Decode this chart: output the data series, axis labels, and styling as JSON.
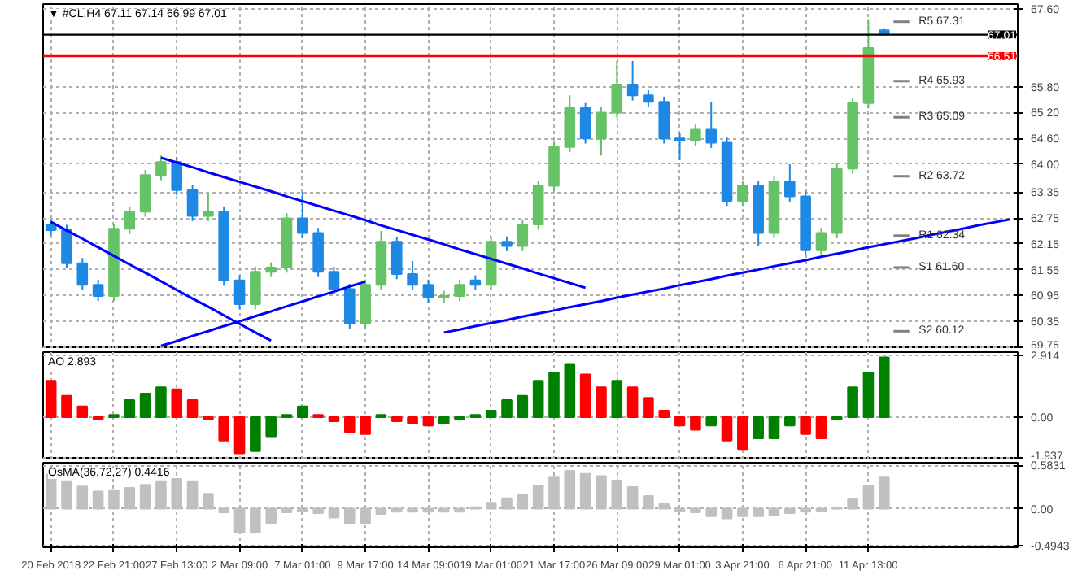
{
  "chart_data": [
    {
      "type": "candlestick",
      "title": "▼ #CL,H4  67.11 67.14 66.99 67.01",
      "categories": [
        null,
        null,
        null,
        null,
        null,
        null,
        null,
        null,
        null,
        null,
        null,
        null,
        null,
        null,
        null,
        null,
        null,
        null,
        null,
        null,
        null,
        null,
        null,
        null,
        null,
        null,
        null,
        null,
        null,
        null,
        null,
        null,
        null,
        null,
        null,
        null,
        null,
        null,
        null,
        null,
        null,
        null,
        null,
        null,
        null,
        null,
        null,
        null,
        null,
        null,
        null,
        null,
        null,
        null,
        null,
        null,
        null,
        null,
        null,
        null,
        null,
        null
      ],
      "ohlc": [
        [
          62.6,
          62.72,
          62.35,
          62.47
        ],
        [
          62.47,
          62.59,
          61.58,
          61.7
        ],
        [
          61.7,
          61.82,
          61.08,
          61.2
        ],
        [
          61.2,
          61.32,
          60.82,
          60.94
        ],
        [
          60.94,
          62.62,
          60.82,
          62.5
        ],
        [
          62.5,
          63.02,
          62.38,
          62.9
        ],
        [
          62.9,
          63.87,
          62.78,
          63.75
        ],
        [
          63.75,
          64.2,
          63.63,
          64.05
        ],
        [
          64.05,
          64.17,
          63.28,
          63.4
        ],
        [
          63.4,
          63.52,
          62.68,
          62.8
        ],
        [
          62.8,
          63.3,
          62.68,
          62.9
        ],
        [
          62.9,
          63.02,
          61.18,
          61.3
        ],
        [
          61.3,
          61.42,
          60.63,
          60.75
        ],
        [
          60.75,
          61.62,
          60.63,
          61.5
        ],
        [
          61.5,
          61.72,
          61.38,
          61.6
        ],
        [
          61.6,
          62.86,
          61.48,
          62.74
        ],
        [
          62.74,
          63.35,
          62.28,
          62.4
        ],
        [
          62.4,
          62.52,
          61.38,
          61.5
        ],
        [
          61.5,
          61.62,
          60.98,
          61.1
        ],
        [
          61.1,
          61.22,
          60.18,
          60.3
        ],
        [
          60.3,
          61.32,
          60.18,
          61.2
        ],
        [
          61.2,
          62.45,
          61.08,
          62.2
        ],
        [
          62.2,
          62.32,
          61.33,
          61.45
        ],
        [
          61.45,
          61.75,
          61.08,
          61.2
        ],
        [
          61.2,
          61.32,
          60.78,
          60.9
        ],
        [
          60.9,
          61.06,
          60.78,
          60.94
        ],
        [
          60.94,
          61.32,
          60.82,
          61.2
        ],
        [
          61.3,
          61.42,
          61.08,
          61.2
        ],
        [
          61.2,
          62.32,
          61.08,
          62.2
        ],
        [
          62.2,
          62.32,
          61.98,
          62.1
        ],
        [
          62.1,
          62.72,
          61.98,
          62.6
        ],
        [
          62.6,
          63.62,
          62.48,
          63.5
        ],
        [
          63.5,
          64.52,
          63.38,
          64.4
        ],
        [
          64.4,
          65.6,
          64.28,
          65.3
        ],
        [
          65.3,
          65.42,
          64.48,
          64.6
        ],
        [
          64.6,
          65.32,
          64.2,
          65.2
        ],
        [
          65.2,
          66.4,
          65.08,
          65.85
        ],
        [
          65.85,
          66.4,
          65.48,
          65.6
        ],
        [
          65.6,
          65.72,
          65.33,
          65.45
        ],
        [
          65.45,
          65.57,
          64.48,
          64.6
        ],
        [
          64.6,
          64.72,
          64.1,
          64.55
        ],
        [
          64.55,
          64.92,
          64.43,
          64.8
        ],
        [
          64.8,
          65.45,
          64.38,
          64.5
        ],
        [
          64.5,
          64.62,
          63.03,
          63.15
        ],
        [
          63.15,
          63.62,
          63.03,
          63.5
        ],
        [
          63.5,
          63.62,
          62.1,
          62.4
        ],
        [
          62.4,
          63.72,
          62.28,
          63.6
        ],
        [
          63.6,
          64.0,
          63.13,
          63.25
        ],
        [
          63.25,
          63.37,
          61.88,
          62.0
        ],
        [
          62.0,
          62.52,
          61.88,
          62.4
        ],
        [
          62.4,
          64.02,
          62.28,
          63.9
        ],
        [
          63.9,
          65.54,
          63.78,
          65.42
        ],
        [
          65.42,
          67.37,
          65.3,
          66.7
        ],
        [
          67.11,
          67.14,
          66.99,
          67.01
        ],
        null,
        null,
        null,
        null,
        null,
        null,
        null,
        null
      ],
      "colors": [
        "#1e88e5",
        "#1e88e5",
        "#1e88e5",
        "#1e88e5",
        "#66c266",
        "#66c266",
        "#66c266",
        "#66c266",
        "#1e88e5",
        "#1e88e5",
        "#66c266",
        "#1e88e5",
        "#1e88e5",
        "#66c266",
        "#66c266",
        "#66c266",
        "#1e88e5",
        "#1e88e5",
        "#1e88e5",
        "#1e88e5",
        "#66c266",
        "#66c266",
        "#1e88e5",
        "#1e88e5",
        "#1e88e5",
        "#66c266",
        "#66c266",
        "#1e88e5",
        "#66c266",
        "#1e88e5",
        "#66c266",
        "#66c266",
        "#66c266",
        "#66c266",
        "#1e88e5",
        "#66c266",
        "#66c266",
        "#1e88e5",
        "#1e88e5",
        "#1e88e5",
        "#1e88e5",
        "#66c266",
        "#1e88e5",
        "#1e88e5",
        "#66c266",
        "#1e88e5",
        "#66c266",
        "#1e88e5",
        "#1e88e5",
        "#66c266",
        "#66c266",
        "#66c266",
        "#66c266",
        "#1e88e5",
        null,
        null,
        null,
        null,
        null,
        null,
        null,
        null
      ],
      "series": [
        {
          "type": "line",
          "color": "#0000ff",
          "values": [
            62.66,
            62.46,
            62.27,
            62.07,
            61.87,
            61.67,
            61.48,
            61.28,
            61.08,
            60.88,
            60.69,
            60.49,
            60.29,
            60.09,
            59.9,
            null,
            null,
            null,
            null,
            null,
            null,
            null,
            null,
            null,
            null,
            null,
            null,
            null,
            null,
            null,
            null,
            null,
            null,
            null,
            null,
            null,
            null,
            null,
            null,
            null,
            null,
            null,
            null,
            null,
            null,
            null,
            null,
            null,
            null,
            null,
            null,
            null,
            null,
            null,
            null,
            null,
            null,
            null,
            null,
            null,
            null,
            null
          ]
        },
        {
          "type": "line",
          "color": "#0000ff",
          "values": [
            null,
            null,
            null,
            null,
            null,
            null,
            null,
            59.78,
            59.89,
            60.01,
            60.12,
            60.24,
            60.35,
            60.47,
            60.58,
            60.7,
            60.81,
            60.93,
            61.04,
            61.16,
            61.27,
            null,
            null,
            null,
            null,
            null,
            null,
            null,
            null,
            null,
            null,
            null,
            null,
            null,
            null,
            null,
            null,
            null,
            null,
            null,
            null,
            null,
            null,
            null,
            null,
            null,
            null,
            null,
            null,
            null,
            null,
            null,
            null,
            null,
            null,
            null,
            null,
            null,
            null,
            null,
            null,
            null
          ]
        },
        {
          "type": "line",
          "color": "#0000ff",
          "values": [
            null,
            null,
            null,
            null,
            null,
            null,
            null,
            64.15,
            64.04,
            63.93,
            63.81,
            63.7,
            63.59,
            63.48,
            63.37,
            63.25,
            63.14,
            63.03,
            62.92,
            62.81,
            62.7,
            62.58,
            62.47,
            62.36,
            62.25,
            62.14,
            62.02,
            61.91,
            61.8,
            61.69,
            61.58,
            61.46,
            61.35,
            61.24,
            61.13,
            null,
            null,
            null,
            null,
            null,
            null,
            null,
            null,
            null,
            null,
            null,
            null,
            null,
            null,
            null,
            null,
            null,
            null,
            null,
            null,
            null,
            null,
            null,
            null,
            null,
            null,
            null
          ]
        },
        {
          "type": "line",
          "color": "#0000ff",
          "values": [
            null,
            null,
            null,
            null,
            null,
            null,
            null,
            null,
            null,
            null,
            null,
            null,
            null,
            null,
            null,
            null,
            null,
            null,
            null,
            null,
            null,
            null,
            null,
            null,
            null,
            60.09,
            60.16,
            60.24,
            60.31,
            60.38,
            60.46,
            60.53,
            60.6,
            60.68,
            60.75,
            60.82,
            60.9,
            60.97,
            61.04,
            61.11,
            61.19,
            61.26,
            61.33,
            61.41,
            61.48,
            61.55,
            61.63,
            61.7,
            61.77,
            61.85,
            61.92,
            61.99,
            62.07,
            62.14,
            62.21,
            62.28,
            62.36,
            62.43,
            62.5,
            62.58,
            62.65,
            62.72
          ]
        }
      ],
      "ylim": [
        59.71,
        67.72
      ],
      "yticks": [
        {
          "value": 67.6,
          "label": "67.60"
        },
        {
          "value": 65.8,
          "label": "65.80"
        },
        {
          "value": 65.2,
          "label": "65.20"
        },
        {
          "value": 64.6,
          "label": "64.60"
        },
        {
          "value": 64.0,
          "label": "64.00"
        },
        63.35,
        62.75,
        62.15,
        61.55,
        60.95,
        60.35,
        59.75
      ],
      "ref_lines": [
        {
          "axis": "y",
          "value": 66.51,
          "label": "66.51",
          "color": "#ff0000"
        },
        {
          "axis": "y",
          "value": 67.01,
          "label": "67.01",
          "color": "#000000"
        },
        {
          "axis": "y",
          "value": 67.31,
          "label": "R5 67.31"
        },
        {
          "axis": "y",
          "value": 65.93,
          "label": "R4 65.93"
        },
        {
          "axis": "y",
          "value": 65.09,
          "label": "R3 65.09"
        },
        {
          "axis": "y",
          "value": 63.72,
          "label": "R2 63.72"
        },
        {
          "axis": "y",
          "value": 62.34,
          "label": "R1 62.34"
        },
        {
          "axis": "y",
          "value": 61.6,
          "label": "S1 61.60"
        },
        {
          "axis": "y",
          "value": 60.12,
          "label": "S2 60.12"
        }
      ],
      "grid": true,
      "tick_labels": "y"
    },
    {
      "type": "bar",
      "title": "AO 2.893",
      "categories": [
        null,
        null,
        null,
        null,
        null,
        null,
        null,
        null,
        null,
        null,
        null,
        null,
        null,
        null,
        null,
        null,
        null,
        null,
        null,
        null,
        null,
        null,
        null,
        null,
        null,
        null,
        null,
        null,
        null,
        null,
        null,
        null,
        null,
        null,
        null,
        null,
        null,
        null,
        null,
        null,
        null,
        null,
        null,
        null,
        null,
        null,
        null,
        null,
        null,
        null,
        null,
        null,
        null,
        null,
        null,
        null,
        null,
        null,
        null,
        null,
        null,
        null
      ],
      "values": [
        1.7,
        1.0,
        0.5,
        -0.1,
        0.1,
        0.8,
        1.1,
        1.4,
        1.3,
        0.8,
        -0.1,
        -1.1,
        -1.7,
        -1.6,
        -0.9,
        0.1,
        0.5,
        0.1,
        -0.2,
        -0.7,
        -0.8,
        0.1,
        -0.2,
        -0.3,
        -0.4,
        -0.3,
        -0.1,
        0.1,
        0.3,
        0.8,
        1.0,
        1.7,
        2.1,
        2.5,
        2.0,
        1.4,
        1.7,
        1.4,
        0.9,
        0.3,
        -0.4,
        -0.6,
        -0.4,
        -1.1,
        -1.5,
        -1.0,
        -1.0,
        -0.4,
        -0.8,
        -1.0,
        -0.1,
        1.4,
        2.1,
        2.8,
        null,
        null,
        null,
        null,
        null,
        null,
        null,
        null
      ],
      "colors": [
        "#ff0000",
        "#ff0000",
        "#ff0000",
        "#ff0000",
        "#008000",
        "#008000",
        "#008000",
        "#008000",
        "#ff0000",
        "#ff0000",
        "#ff0000",
        "#ff0000",
        "#ff0000",
        "#008000",
        "#008000",
        "#008000",
        "#008000",
        "#ff0000",
        "#ff0000",
        "#ff0000",
        "#ff0000",
        "#008000",
        "#ff0000",
        "#ff0000",
        "#ff0000",
        "#008000",
        "#008000",
        "#008000",
        "#008000",
        "#008000",
        "#008000",
        "#008000",
        "#008000",
        "#008000",
        "#ff0000",
        "#ff0000",
        "#008000",
        "#ff0000",
        "#ff0000",
        "#ff0000",
        "#ff0000",
        "#ff0000",
        "#008000",
        "#ff0000",
        "#ff0000",
        "#008000",
        "#008000",
        "#008000",
        "#ff0000",
        "#ff0000",
        "#008000",
        "#008000",
        "#008000",
        "#008000",
        null,
        null,
        null,
        null,
        null,
        null,
        null,
        null
      ],
      "ylim": [
        -1.99,
        3.05
      ],
      "yticks": [
        2.914,
        {
          "value": 0,
          "label": "0.00"
        },
        -1.937
      ],
      "grid": true,
      "tick_labels": "y"
    },
    {
      "type": "bar",
      "title": "OsMA(36,72,27) 0.4416",
      "color": "#c0c0c0",
      "categories": [
        "20 Feb 2018",
        null,
        null,
        null,
        "22 Feb 21:00",
        null,
        null,
        null,
        "27 Feb 13:00",
        null,
        null,
        null,
        "2 Mar 09:00",
        null,
        null,
        null,
        "7 Mar 01:00",
        null,
        null,
        null,
        "9 Mar 17:00",
        null,
        null,
        null,
        "14 Mar 09:00",
        null,
        null,
        null,
        "19 Mar 01:00",
        null,
        null,
        null,
        "21 Mar 17:00",
        null,
        null,
        null,
        "26 Mar 09:00",
        null,
        null,
        null,
        "29 Mar 01:00",
        null,
        null,
        null,
        "3 Apr 21:00",
        null,
        null,
        null,
        "6 Apr 21:00",
        null,
        null,
        null,
        "11 Apr 13:00",
        null,
        null,
        null,
        null,
        null,
        null,
        null,
        null,
        null
      ],
      "values": [
        0.46,
        0.37,
        0.3,
        0.23,
        0.25,
        0.28,
        0.32,
        0.37,
        0.4,
        0.37,
        0.2,
        -0.05,
        -0.32,
        -0.32,
        -0.19,
        -0.05,
        -0.03,
        -0.06,
        -0.12,
        -0.19,
        -0.19,
        -0.07,
        -0.04,
        -0.04,
        -0.04,
        -0.04,
        -0.04,
        0.02,
        0.08,
        0.14,
        0.19,
        0.31,
        0.43,
        0.51,
        0.47,
        0.44,
        0.38,
        0.29,
        0.17,
        0.06,
        -0.03,
        -0.05,
        -0.1,
        -0.13,
        -0.1,
        -0.1,
        -0.09,
        -0.06,
        -0.04,
        -0.03,
        0.01,
        0.13,
        0.31,
        0.43,
        null,
        null,
        null,
        null,
        null,
        null,
        null,
        null
      ],
      "ylim": [
        -0.52,
        0.62
      ],
      "yticks": [
        0.5831,
        {
          "value": 0,
          "label": "0.00"
        },
        -0.4943
      ],
      "grid": true
    }
  ]
}
